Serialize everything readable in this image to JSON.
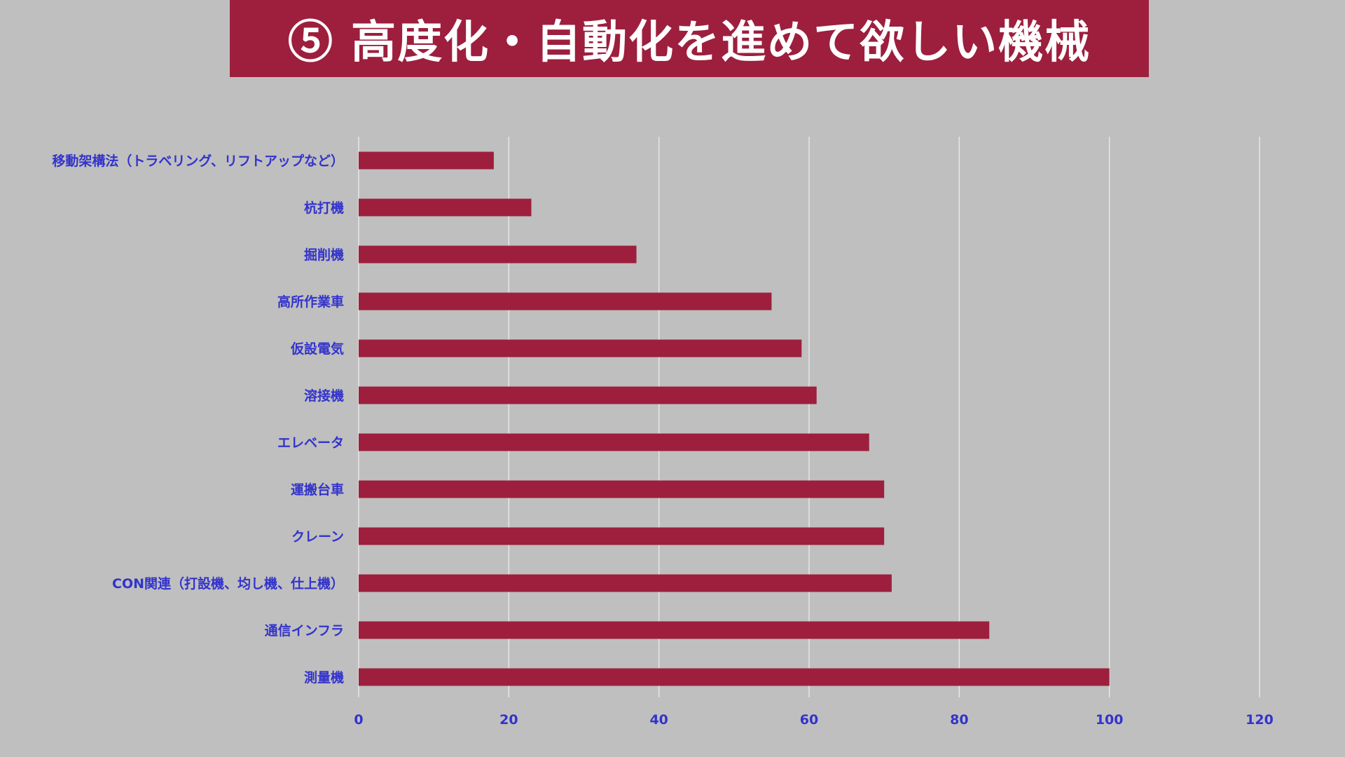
{
  "header": {
    "title": "⑤ 高度化・自動化を進めて欲しい機械"
  },
  "colors": {
    "background": "#bfbfbf",
    "banner": "#9d1f3d",
    "bar": "#9d1f3d",
    "label": "#3333cc",
    "grid": "#e6e6e6"
  },
  "chart_data": {
    "type": "bar",
    "orientation": "horizontal",
    "title": "⑤ 高度化・自動化を進めて欲しい機械",
    "categories": [
      "移動架構法（トラベリング、リフトアップなど）",
      "杭打機",
      "掘削機",
      "高所作業車",
      "仮設電気",
      "溶接機",
      "エレベータ",
      "運搬台車",
      "クレーン",
      "CON関連（打設機、均し機、仕上機）",
      "通信インフラ",
      "測量機"
    ],
    "values": [
      18,
      23,
      37,
      55,
      59,
      61,
      68,
      70,
      70,
      71,
      84,
      100
    ],
    "xlim": [
      0,
      120
    ],
    "xticks": [
      0,
      20,
      40,
      60,
      80,
      100,
      120
    ],
    "xlabel": "",
    "ylabel": "",
    "grid": "vertical",
    "legend": "none"
  }
}
